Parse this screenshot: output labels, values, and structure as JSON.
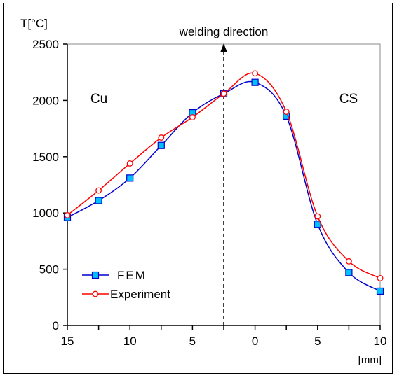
{
  "chart_data": {
    "type": "line",
    "ylabel": "T[°C]",
    "xunit": "[mm]",
    "top_annotation": "welding direction",
    "region_labels": {
      "left": "Cu",
      "right": "CS"
    },
    "x_ticks": [
      "15",
      "10",
      "5",
      "0",
      "5",
      "10"
    ],
    "y_ticks": [
      0,
      500,
      1000,
      1500,
      2000,
      2500
    ],
    "ylim": [
      0,
      2500
    ],
    "xlim": [
      -15,
      10
    ],
    "divider_x": -2.5,
    "grid": false,
    "legend_position": "bottom-left",
    "series": [
      {
        "name": "FEM",
        "color": "#0000cc",
        "fill": "#00bfff",
        "marker": "square",
        "x": [
          -15,
          -12.5,
          -10,
          -7.5,
          -5,
          -2.5,
          0,
          2.5,
          5,
          7.5,
          10
        ],
        "values": [
          960,
          1110,
          1310,
          1600,
          1890,
          2060,
          2160,
          1860,
          900,
          470,
          305
        ]
      },
      {
        "name": "Experiment",
        "color": "#ff0000",
        "fill": "#ffffff",
        "marker": "circle",
        "x": [
          -15,
          -12.5,
          -10,
          -7.5,
          -5,
          -2.5,
          0,
          2.5,
          5,
          7.5,
          10
        ],
        "values": [
          980,
          1200,
          1440,
          1670,
          1850,
          2060,
          2240,
          1900,
          970,
          570,
          420
        ]
      }
    ]
  }
}
